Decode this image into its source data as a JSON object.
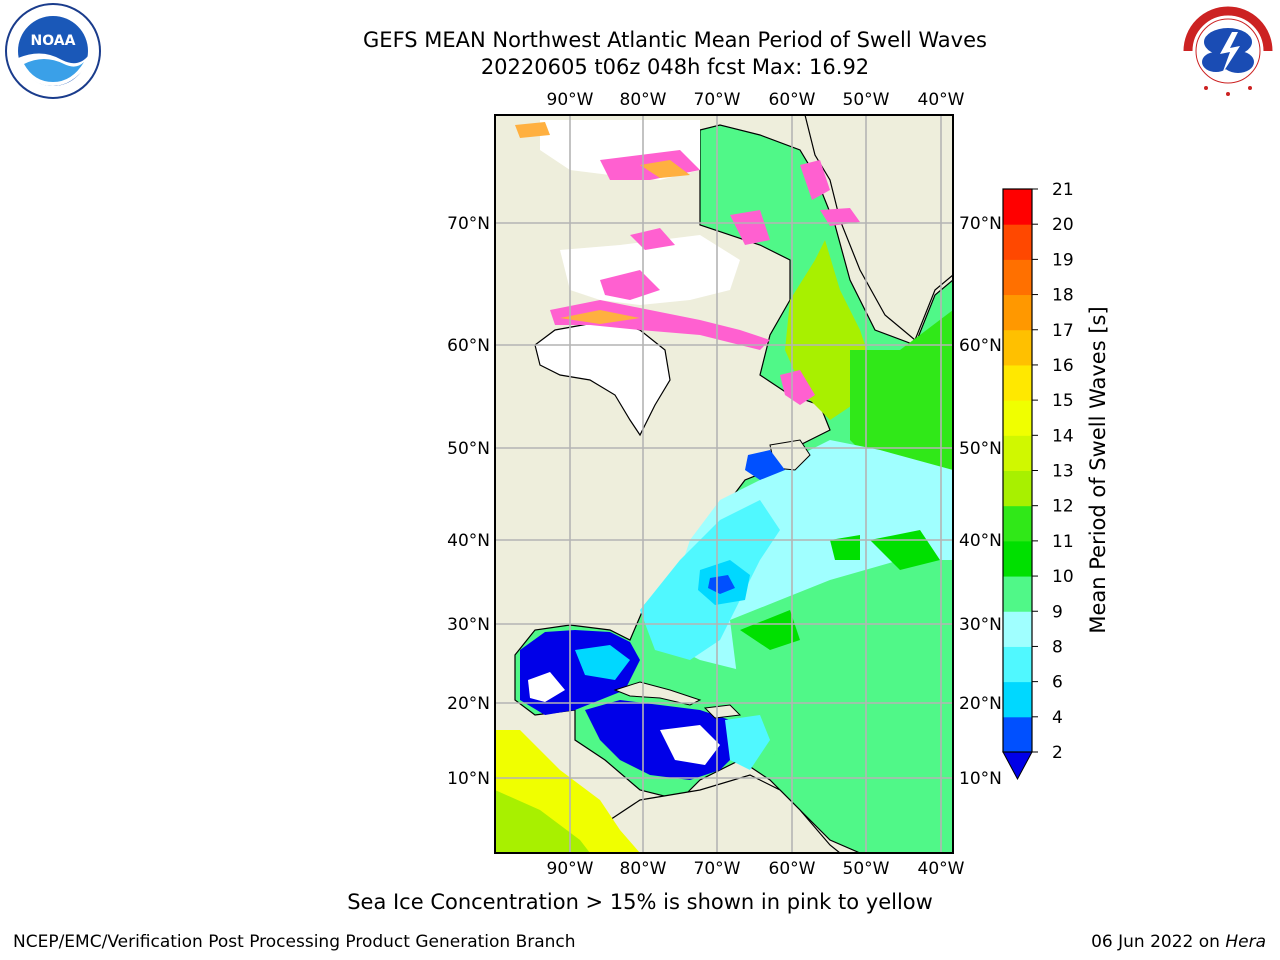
{
  "title_line1": "GEFS MEAN Northwest Atlantic Mean Period of Swell Waves",
  "title_line2": "20220605 t06z 048h fcst   Max: 16.92",
  "footnote": "Sea Ice Concentration > 15% is shown in pink to yellow",
  "footer_left": "NCEP/EMC/Verification Post Processing Product Generation Branch",
  "footer_date": "06 Jun 2022 on",
  "footer_host": "Hera",
  "logo_left": "NOAA",
  "logo_right": "NATIONAL WEATHER SERVICE",
  "map": {
    "lon_labels": [
      "90°W",
      "80°W",
      "70°W",
      "60°W",
      "50°W",
      "40°W"
    ],
    "lat_labels": [
      "70°N",
      "60°N",
      "50°N",
      "40°N",
      "30°N",
      "20°N",
      "10°N"
    ]
  },
  "colorbar": {
    "label": "Mean Period of Swell Waves [s]",
    "ticks": [
      "2",
      "4",
      "6",
      "8",
      "9",
      "10",
      "11",
      "12",
      "13",
      "14",
      "15",
      "16",
      "17",
      "18",
      "19",
      "20",
      "21"
    ],
    "colors": [
      "#0050ff",
      "#00d8ff",
      "#50f8ff",
      "#a0ffff",
      "#50f888",
      "#00e000",
      "#30e818",
      "#a8f000",
      "#d0f800",
      "#f0ff00",
      "#ffe800",
      "#ffc000",
      "#ff9800",
      "#ff7000",
      "#ff4800",
      "#ff0000"
    ],
    "under_color": "#0000e8"
  }
}
